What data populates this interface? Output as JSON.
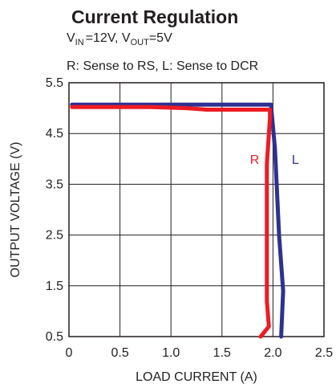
{
  "header": {
    "title": "Current Regulation",
    "line1": {
      "vin_var": "V",
      "vin_sub": "IN",
      "vin_val": "=12V,",
      "vout_var": "V",
      "vout_sub": "OUT",
      "vout_val": "=5V"
    },
    "line2": "R: Sense to RS, L: Sense to DCR"
  },
  "chart_data": {
    "type": "line",
    "title": "Current Regulation",
    "xlabel": "LOAD CURRENT (A)",
    "ylabel": "OUTPUT VOLTAGE (V)",
    "xlim": [
      0,
      2.5
    ],
    "ylim": [
      0.5,
      5.5
    ],
    "xticks": [
      "0",
      "0.5",
      "1.0",
      "1.5",
      "2.0",
      "2.5"
    ],
    "yticks": [
      "0.5",
      "1.5",
      "2.5",
      "3.5",
      "4.5",
      "5.5"
    ],
    "xtick_values": [
      0,
      0.5,
      1.0,
      1.5,
      2.0,
      2.5
    ],
    "ytick_values": [
      0.5,
      1.5,
      2.5,
      3.5,
      4.5,
      5.5
    ],
    "grid": true,
    "series": [
      {
        "name": "L",
        "color": "#2e3192",
        "points": [
          [
            0.03,
            5.07
          ],
          [
            1.0,
            5.07
          ],
          [
            1.5,
            5.07
          ],
          [
            1.98,
            5.07
          ],
          [
            2.02,
            4.2
          ],
          [
            2.06,
            2.5
          ],
          [
            2.1,
            1.4
          ],
          [
            2.08,
            0.5
          ]
        ]
      },
      {
        "name": "R",
        "color": "#ed1c24",
        "points": [
          [
            0.03,
            5.02
          ],
          [
            0.8,
            5.02
          ],
          [
            1.15,
            5.0
          ],
          [
            1.35,
            4.97
          ],
          [
            1.5,
            4.97
          ],
          [
            1.97,
            4.97
          ],
          [
            1.97,
            4.8
          ],
          [
            1.94,
            3.9
          ],
          [
            1.94,
            1.2
          ],
          [
            1.96,
            0.7
          ],
          [
            1.88,
            0.5
          ]
        ]
      }
    ],
    "annotations": [
      {
        "text": "R",
        "x": 1.82,
        "y": 4.0,
        "color": "#ed1c24"
      },
      {
        "text": "L",
        "x": 2.22,
        "y": 4.0,
        "color": "#2e3192"
      }
    ]
  }
}
